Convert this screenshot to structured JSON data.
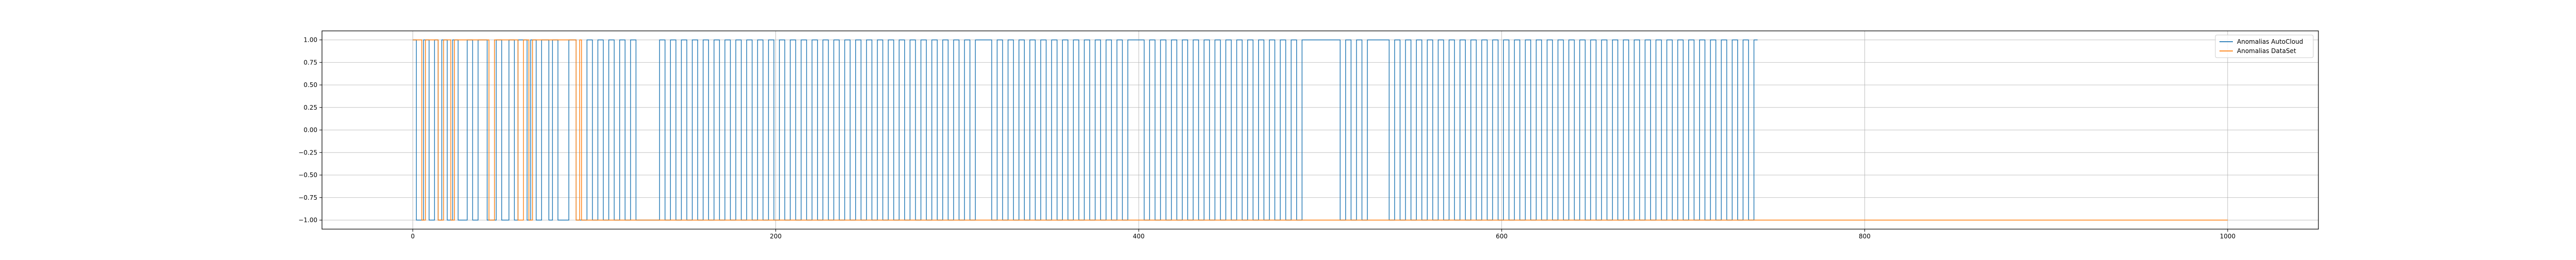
{
  "chart_data": {
    "type": "line",
    "title": "",
    "xlabel": "",
    "ylabel": "",
    "xlim": [
      -50,
      1050
    ],
    "ylim": [
      -1.1,
      1.1
    ],
    "x_ticks": [
      0,
      200,
      400,
      600,
      800,
      1000
    ],
    "x_tick_labels": [
      "0",
      "200",
      "400",
      "600",
      "800",
      "1000"
    ],
    "y_ticks": [
      1.0,
      0.75,
      0.5,
      0.25,
      0.0,
      -0.25,
      -0.5,
      -0.75,
      -1.0
    ],
    "y_tick_labels": [
      "1.00",
      "0.75",
      "0.50",
      "0.25",
      "0.00",
      "−0.25",
      "−0.50",
      "−0.75",
      "−1.00"
    ],
    "grid": true,
    "legend_position": "top-right",
    "series": [
      {
        "name": "Anomalias AutoCloud",
        "color": "#1f77b4",
        "step_points": [
          [
            0,
            1
          ],
          [
            2,
            -1
          ],
          [
            6,
            1
          ],
          [
            9,
            -1
          ],
          [
            12,
            1
          ],
          [
            14,
            -1
          ],
          [
            16,
            1
          ],
          [
            19,
            -1
          ],
          [
            22,
            1
          ],
          [
            25,
            -1
          ],
          [
            30,
            1
          ],
          [
            33,
            -1
          ],
          [
            36,
            1
          ],
          [
            41,
            -1
          ],
          [
            46,
            1
          ],
          [
            49,
            -1
          ],
          [
            53,
            1
          ],
          [
            56,
            -1
          ],
          [
            58,
            1
          ],
          [
            63,
            -1
          ],
          [
            65,
            1
          ],
          [
            68,
            -1
          ],
          [
            71,
            1
          ],
          [
            75,
            -1
          ],
          [
            77,
            1
          ],
          [
            80,
            -1
          ],
          [
            86,
            1
          ],
          [
            90,
            -1
          ],
          [
            96,
            1
          ],
          [
            99,
            -1
          ],
          [
            102,
            1
          ],
          [
            105,
            -1
          ],
          [
            108,
            1
          ],
          [
            111,
            -1
          ],
          [
            114,
            1
          ],
          [
            117,
            -1
          ],
          [
            120,
            1
          ],
          [
            123,
            -1
          ],
          [
            136,
            1
          ],
          [
            139,
            -1
          ],
          [
            142,
            1
          ],
          [
            145,
            -1
          ],
          [
            148,
            1
          ],
          [
            151,
            -1
          ],
          [
            154,
            1
          ],
          [
            157,
            -1
          ],
          [
            160,
            1
          ],
          [
            163,
            -1
          ],
          [
            166,
            1
          ],
          [
            169,
            -1
          ],
          [
            172,
            1
          ],
          [
            175,
            -1
          ],
          [
            178,
            1
          ],
          [
            181,
            -1
          ],
          [
            184,
            1
          ],
          [
            187,
            -1
          ],
          [
            190,
            1
          ],
          [
            193,
            -1
          ],
          [
            196,
            1
          ],
          [
            199,
            -1
          ],
          [
            202,
            1
          ],
          [
            205,
            -1
          ],
          [
            208,
            1
          ],
          [
            211,
            -1
          ],
          [
            214,
            1
          ],
          [
            217,
            -1
          ],
          [
            220,
            1
          ],
          [
            223,
            -1
          ],
          [
            226,
            1
          ],
          [
            229,
            -1
          ],
          [
            232,
            1
          ],
          [
            235,
            -1
          ],
          [
            238,
            1
          ],
          [
            241,
            -1
          ],
          [
            244,
            1
          ],
          [
            247,
            -1
          ],
          [
            250,
            1
          ],
          [
            253,
            -1
          ],
          [
            256,
            1
          ],
          [
            259,
            -1
          ],
          [
            262,
            1
          ],
          [
            265,
            -1
          ],
          [
            268,
            1
          ],
          [
            271,
            -1
          ],
          [
            274,
            1
          ],
          [
            277,
            -1
          ],
          [
            280,
            1
          ],
          [
            283,
            -1
          ],
          [
            286,
            1
          ],
          [
            289,
            -1
          ],
          [
            292,
            1
          ],
          [
            295,
            -1
          ],
          [
            298,
            1
          ],
          [
            301,
            -1
          ],
          [
            304,
            1
          ],
          [
            307,
            -1
          ],
          [
            310,
            1
          ],
          [
            319,
            -1
          ],
          [
            322,
            1
          ],
          [
            325,
            -1
          ],
          [
            328,
            1
          ],
          [
            331,
            -1
          ],
          [
            334,
            1
          ],
          [
            337,
            -1
          ],
          [
            340,
            1
          ],
          [
            343,
            -1
          ],
          [
            346,
            1
          ],
          [
            349,
            -1
          ],
          [
            352,
            1
          ],
          [
            355,
            -1
          ],
          [
            358,
            1
          ],
          [
            361,
            -1
          ],
          [
            364,
            1
          ],
          [
            367,
            -1
          ],
          [
            370,
            1
          ],
          [
            373,
            -1
          ],
          [
            376,
            1
          ],
          [
            379,
            -1
          ],
          [
            382,
            1
          ],
          [
            385,
            -1
          ],
          [
            388,
            1
          ],
          [
            391,
            -1
          ],
          [
            394,
            1
          ],
          [
            403,
            -1
          ],
          [
            406,
            1
          ],
          [
            409,
            -1
          ],
          [
            412,
            1
          ],
          [
            415,
            -1
          ],
          [
            418,
            1
          ],
          [
            421,
            -1
          ],
          [
            424,
            1
          ],
          [
            427,
            -1
          ],
          [
            430,
            1
          ],
          [
            433,
            -1
          ],
          [
            436,
            1
          ],
          [
            439,
            -1
          ],
          [
            442,
            1
          ],
          [
            445,
            -1
          ],
          [
            448,
            1
          ],
          [
            451,
            -1
          ],
          [
            454,
            1
          ],
          [
            457,
            -1
          ],
          [
            460,
            1
          ],
          [
            463,
            -1
          ],
          [
            466,
            1
          ],
          [
            469,
            -1
          ],
          [
            472,
            1
          ],
          [
            475,
            -1
          ],
          [
            478,
            1
          ],
          [
            481,
            -1
          ],
          [
            484,
            1
          ],
          [
            487,
            -1
          ],
          [
            490,
            1
          ],
          [
            511,
            -1
          ],
          [
            514,
            1
          ],
          [
            517,
            -1
          ],
          [
            520,
            1
          ],
          [
            523,
            -1
          ],
          [
            526,
            1
          ],
          [
            538,
            -1
          ],
          [
            541,
            1
          ],
          [
            544,
            -1
          ],
          [
            547,
            1
          ],
          [
            550,
            -1
          ],
          [
            553,
            1
          ],
          [
            556,
            -1
          ],
          [
            559,
            1
          ],
          [
            562,
            -1
          ],
          [
            565,
            1
          ],
          [
            568,
            -1
          ],
          [
            571,
            1
          ],
          [
            574,
            -1
          ],
          [
            577,
            1
          ],
          [
            580,
            -1
          ],
          [
            583,
            1
          ],
          [
            586,
            -1
          ],
          [
            589,
            1
          ],
          [
            592,
            -1
          ],
          [
            595,
            1
          ],
          [
            598,
            -1
          ],
          [
            601,
            1
          ],
          [
            604,
            -1
          ],
          [
            607,
            1
          ],
          [
            610,
            -1
          ],
          [
            613,
            1
          ],
          [
            616,
            -1
          ],
          [
            619,
            1
          ],
          [
            622,
            -1
          ],
          [
            625,
            1
          ],
          [
            628,
            -1
          ],
          [
            631,
            1
          ],
          [
            634,
            -1
          ],
          [
            637,
            1
          ],
          [
            640,
            -1
          ],
          [
            643,
            1
          ],
          [
            646,
            -1
          ],
          [
            649,
            1
          ],
          [
            652,
            -1
          ],
          [
            655,
            1
          ],
          [
            658,
            -1
          ],
          [
            661,
            1
          ],
          [
            664,
            -1
          ],
          [
            667,
            1
          ],
          [
            670,
            -1
          ],
          [
            673,
            1
          ],
          [
            676,
            -1
          ],
          [
            679,
            1
          ],
          [
            682,
            -1
          ],
          [
            685,
            1
          ],
          [
            688,
            -1
          ],
          [
            691,
            1
          ],
          [
            694,
            -1
          ],
          [
            697,
            1
          ],
          [
            700,
            -1
          ],
          [
            703,
            1
          ],
          [
            706,
            -1
          ],
          [
            709,
            1
          ],
          [
            712,
            -1
          ],
          [
            715,
            1
          ],
          [
            718,
            -1
          ],
          [
            721,
            1
          ],
          [
            724,
            -1
          ],
          [
            727,
            1
          ],
          [
            730,
            -1
          ],
          [
            733,
            1
          ],
          [
            736,
            -1
          ],
          [
            739,
            1
          ],
          [
            741,
            1
          ]
        ]
      },
      {
        "name": "Anomalias DataSet",
        "color": "#ff7f0e",
        "step_points": [
          [
            0,
            1
          ],
          [
            5,
            -1
          ],
          [
            7,
            1
          ],
          [
            14,
            -1
          ],
          [
            17,
            1
          ],
          [
            21,
            -1
          ],
          [
            23,
            1
          ],
          [
            42,
            -1
          ],
          [
            45,
            1
          ],
          [
            58,
            -1
          ],
          [
            61,
            1
          ],
          [
            64,
            -1
          ],
          [
            66,
            1
          ],
          [
            90,
            -1
          ],
          [
            92,
            1
          ],
          [
            93,
            -1
          ],
          [
            1000,
            -1
          ]
        ]
      }
    ]
  }
}
